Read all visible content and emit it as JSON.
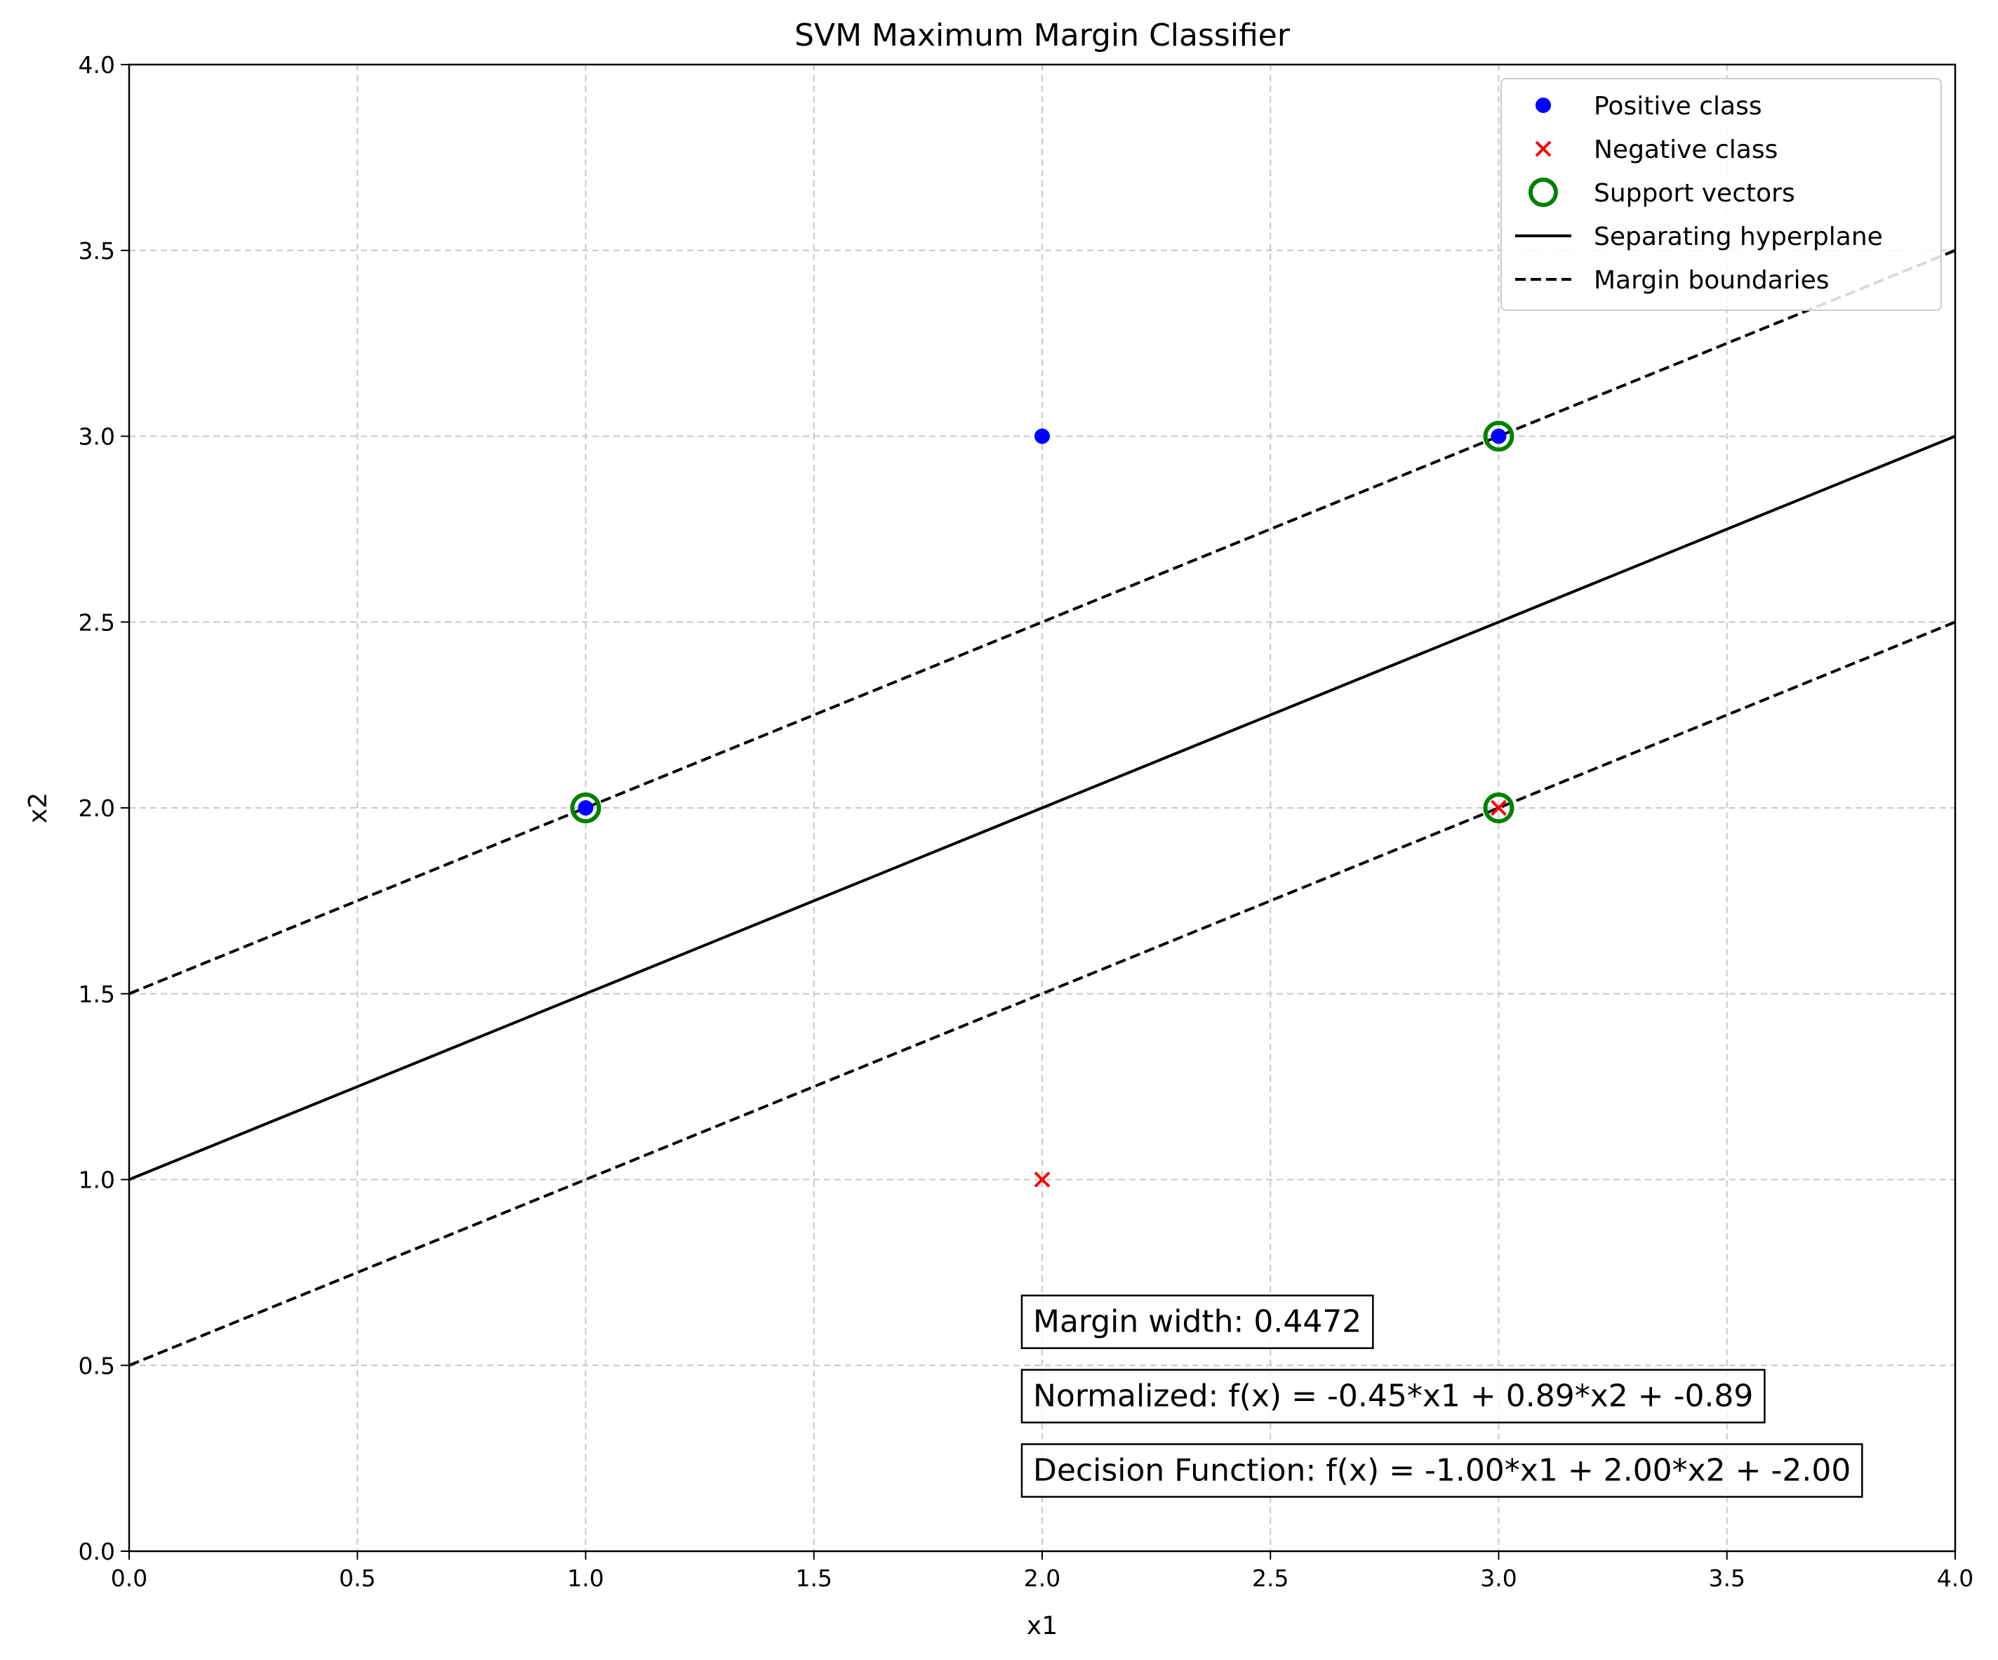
{
  "chart_data": {
    "type": "scatter",
    "title": "SVM Maximum Margin Classifier",
    "xlabel": "x1",
    "ylabel": "x2",
    "xlim": [
      0,
      4
    ],
    "ylim": [
      0,
      4
    ],
    "grid": true,
    "legend_position": "top-right",
    "x_ticks": [
      "0.0",
      "0.5",
      "1.0",
      "1.5",
      "2.0",
      "2.5",
      "3.0",
      "3.5",
      "4.0"
    ],
    "y_ticks": [
      "0.0",
      "0.5",
      "1.0",
      "1.5",
      "2.0",
      "2.5",
      "3.0",
      "3.5",
      "4.0"
    ],
    "positive_points": [
      [
        1,
        2
      ],
      [
        2,
        3
      ],
      [
        3,
        3
      ]
    ],
    "negative_points": [
      [
        2,
        1
      ],
      [
        3,
        2
      ]
    ],
    "support_vectors": [
      [
        1,
        2
      ],
      [
        3,
        3
      ],
      [
        3,
        2
      ]
    ],
    "lines": [
      {
        "name": "Separating hyperplane",
        "style": "solid",
        "slope": 0.5,
        "intercept": 1.0
      },
      {
        "name": "Margin boundaries",
        "style": "dashed",
        "slope": 0.5,
        "intercept": 1.5
      },
      {
        "name": "Margin boundaries",
        "style": "dashed",
        "slope": 0.5,
        "intercept": 0.5
      }
    ],
    "legend": [
      {
        "label": "Positive class",
        "marker": "dot",
        "color": "#0000ff"
      },
      {
        "label": "Negative class",
        "marker": "x",
        "color": "#ff0000"
      },
      {
        "label": "Support vectors",
        "marker": "ring",
        "color": "#008000"
      },
      {
        "label": "Separating hyperplane",
        "marker": "solid-line",
        "color": "#000000"
      },
      {
        "label": "Margin boundaries",
        "marker": "dashed-line",
        "color": "#000000"
      }
    ],
    "annotations": [
      {
        "text": "Margin width: 0.4472",
        "x": 1.98,
        "y": 0.62
      },
      {
        "text": "Normalized: f(x) = -0.45*x1 + 0.89*x2 + -0.89",
        "x": 1.98,
        "y": 0.42
      },
      {
        "text": "Decision Function: f(x) = -1.00*x1 + 2.00*x2 + -2.00",
        "x": 1.98,
        "y": 0.22
      }
    ]
  },
  "colors": {
    "positive": "#0000ff",
    "negative": "#ff0000",
    "support": "#008000",
    "grid": "#c8c8c8",
    "line": "#000000"
  }
}
